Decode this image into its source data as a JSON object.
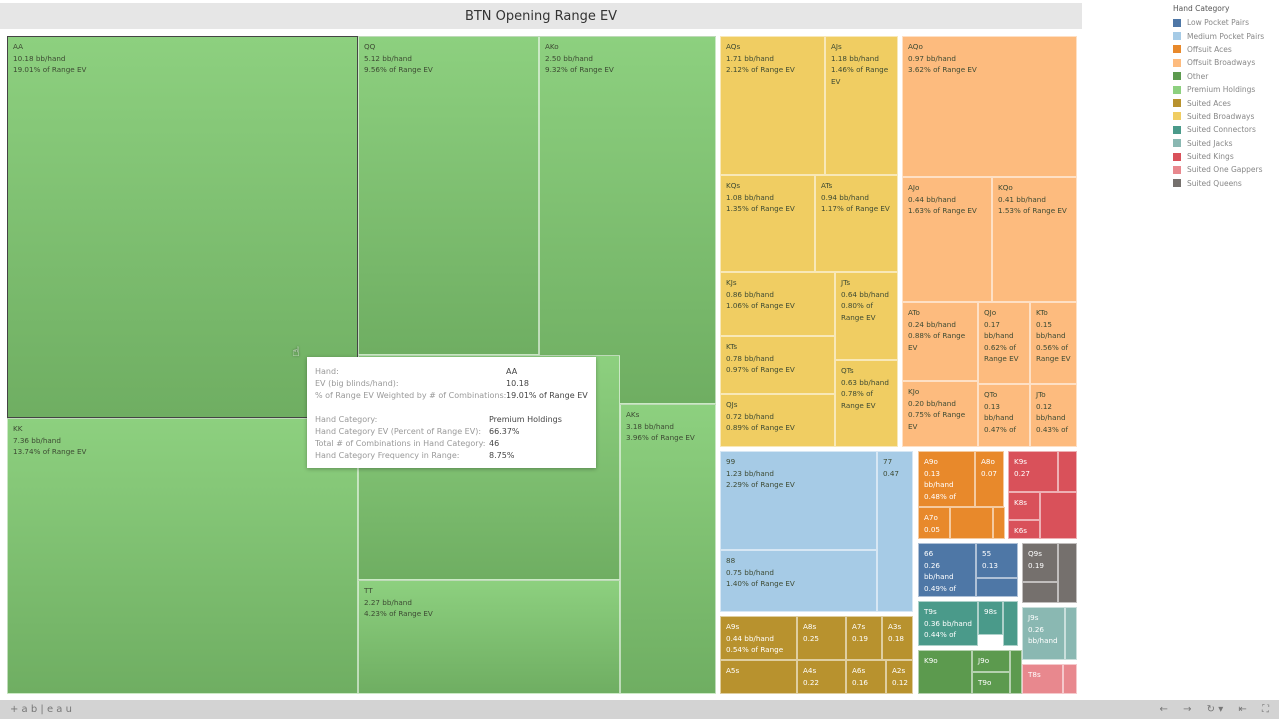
{
  "title": "BTN Opening Range EV",
  "legend": {
    "title": "Hand Category",
    "items": [
      {
        "name": "Low Pocket Pairs",
        "color": "#4e77a6"
      },
      {
        "name": "Medium Pocket Pairs",
        "color": "#a6cbe6"
      },
      {
        "name": "Offsuit Aces",
        "color": "#e8892b"
      },
      {
        "name": "Offsuit Broadways",
        "color": "#fdbb7e"
      },
      {
        "name": "Other",
        "color": "#5c9a4e"
      },
      {
        "name": "Premium Holdings",
        "color": "#8dd07f"
      },
      {
        "name": "Suited Aces",
        "color": "#b8922e"
      },
      {
        "name": "Suited Broadways",
        "color": "#f0cd62"
      },
      {
        "name": "Suited Connectors",
        "color": "#4a9a8a"
      },
      {
        "name": "Suited Jacks",
        "color": "#8ab8b2"
      },
      {
        "name": "Suited Kings",
        "color": "#d9515a"
      },
      {
        "name": "Suited One Gappers",
        "color": "#e8888e"
      },
      {
        "name": "Suited Queens",
        "color": "#75706d"
      }
    ]
  },
  "cells": [
    {
      "cat": 5,
      "hand": "AA",
      "lines": [
        "10.18 bb/hand",
        "19.01% of Range EV"
      ]
    },
    {
      "cat": 5,
      "hand": "QQ",
      "lines": [
        "5.12 bb/hand",
        "9.56% of Range EV"
      ]
    },
    {
      "cat": 5,
      "hand": "AKo",
      "lines": [
        "2.50 bb/hand",
        "9.32% of Range EV"
      ]
    },
    {
      "cat": 5,
      "hand": "",
      "lines": []
    },
    {
      "cat": 5,
      "hand": "AKs",
      "lines": [
        "3.18 bb/hand",
        "3.96% of Range EV"
      ]
    },
    {
      "cat": 5,
      "hand": "KK",
      "lines": [
        "7.36 bb/hand",
        "13.74% of Range EV"
      ]
    },
    {
      "cat": 5,
      "hand": "TT",
      "lines": [
        "2.27 bb/hand",
        "4.23% of Range EV"
      ]
    },
    {
      "cat": 7,
      "hand": "AQs",
      "lines": [
        "1.71 bb/hand",
        "2.12% of Range EV"
      ]
    },
    {
      "cat": 7,
      "hand": "AJs",
      "lines": [
        "1.18 bb/hand",
        "1.46% of Range EV"
      ]
    },
    {
      "cat": 7,
      "hand": "KQs",
      "lines": [
        "1.08 bb/hand",
        "1.35% of Range EV"
      ]
    },
    {
      "cat": 7,
      "hand": "ATs",
      "lines": [
        "0.94 bb/hand",
        "1.17% of Range EV"
      ]
    },
    {
      "cat": 7,
      "hand": "KJs",
      "lines": [
        "0.86 bb/hand",
        "1.06% of Range EV"
      ]
    },
    {
      "cat": 7,
      "hand": "JTs",
      "lines": [
        "0.64 bb/hand",
        "0.80% of Range EV"
      ]
    },
    {
      "cat": 7,
      "hand": "KTs",
      "lines": [
        "0.78 bb/hand",
        "0.97% of Range EV"
      ]
    },
    {
      "cat": 7,
      "hand": "QTs",
      "lines": [
        "0.63 bb/hand",
        "0.78% of Range EV"
      ]
    },
    {
      "cat": 7,
      "hand": "QJs",
      "lines": [
        "0.72 bb/hand",
        "0.89% of Range EV"
      ]
    },
    {
      "cat": 3,
      "hand": "AQo",
      "lines": [
        "0.97 bb/hand",
        "3.62% of Range EV"
      ]
    },
    {
      "cat": 3,
      "hand": "AJo",
      "lines": [
        "0.44 bb/hand",
        "1.63% of Range EV"
      ]
    },
    {
      "cat": 3,
      "hand": "KQo",
      "lines": [
        "0.41 bb/hand",
        "1.53% of Range EV"
      ]
    },
    {
      "cat": 3,
      "hand": "ATo",
      "lines": [
        "0.24 bb/hand",
        "0.88% of Range EV"
      ]
    },
    {
      "cat": 3,
      "hand": "QJo",
      "lines": [
        "0.17",
        "bb/hand",
        "0.62% of",
        "Range EV"
      ]
    },
    {
      "cat": 3,
      "hand": "KTo",
      "lines": [
        "0.15",
        "bb/hand",
        "0.56% of",
        "Range EV"
      ]
    },
    {
      "cat": 3,
      "hand": "KJo",
      "lines": [
        "0.20 bb/hand",
        "0.75% of Range EV"
      ]
    },
    {
      "cat": 3,
      "hand": "QTo",
      "lines": [
        "0.13",
        "bb/hand",
        "0.47% of"
      ]
    },
    {
      "cat": 3,
      "hand": "JTo",
      "lines": [
        "0.12",
        "bb/hand",
        "0.43% of"
      ]
    },
    {
      "cat": 1,
      "hand": "99",
      "lines": [
        "1.23 bb/hand",
        "2.29% of Range EV"
      ]
    },
    {
      "cat": 1,
      "hand": "88",
      "lines": [
        "0.75 bb/hand",
        "1.40% of Range EV"
      ]
    },
    {
      "cat": 1,
      "hand": "77",
      "lines": [
        "0.47"
      ]
    },
    {
      "cat": 6,
      "hand": "A9s",
      "lines": [
        "0.44 bb/hand",
        "0.54% of Range EV"
      ]
    },
    {
      "cat": 6,
      "hand": "A8s",
      "lines": [
        "0.25"
      ]
    },
    {
      "cat": 6,
      "hand": "A7s",
      "lines": [
        "0.19"
      ]
    },
    {
      "cat": 6,
      "hand": "A3s",
      "lines": [
        "0.18"
      ]
    },
    {
      "cat": 6,
      "hand": "A5s",
      "lines": []
    },
    {
      "cat": 6,
      "hand": "A4s",
      "lines": [
        "0.22"
      ]
    },
    {
      "cat": 6,
      "hand": "A6s",
      "lines": [
        "0.16"
      ]
    },
    {
      "cat": 6,
      "hand": "A2s",
      "lines": [
        "0.12"
      ]
    },
    {
      "cat": 2,
      "hand": "A9o",
      "lines": [
        "0.13 bb/hand",
        "0.48% of"
      ]
    },
    {
      "cat": 2,
      "hand": "A8o",
      "lines": [
        "0.07"
      ]
    },
    {
      "cat": 2,
      "hand": "A7o",
      "lines": [
        "0.05"
      ]
    },
    {
      "cat": 2,
      "hand": "",
      "lines": []
    },
    {
      "cat": 2,
      "hand": "",
      "lines": []
    },
    {
      "cat": 10,
      "hand": "K9s",
      "lines": [
        "0.27"
      ]
    },
    {
      "cat": 10,
      "hand": "",
      "lines": []
    },
    {
      "cat": 10,
      "hand": "K8s",
      "lines": []
    },
    {
      "cat": 10,
      "hand": "K6s",
      "lines": []
    },
    {
      "cat": 10,
      "hand": "",
      "lines": []
    },
    {
      "cat": 0,
      "hand": "66",
      "lines": [
        "0.26 bb/hand",
        "0.49% of"
      ]
    },
    {
      "cat": 0,
      "hand": "55",
      "lines": [
        "0.13"
      ]
    },
    {
      "cat": 0,
      "hand": "",
      "lines": []
    },
    {
      "cat": 12,
      "hand": "Q9s",
      "lines": [
        "0.19"
      ]
    },
    {
      "cat": 12,
      "hand": "",
      "lines": []
    },
    {
      "cat": 12,
      "hand": "",
      "lines": []
    },
    {
      "cat": 8,
      "hand": "T9s",
      "lines": [
        "0.36 bb/hand",
        "0.44% of"
      ]
    },
    {
      "cat": 8,
      "hand": "98s",
      "lines": []
    },
    {
      "cat": 8,
      "hand": "",
      "lines": []
    },
    {
      "cat": 9,
      "hand": "J9s",
      "lines": [
        "0.26",
        "bb/hand"
      ]
    },
    {
      "cat": 9,
      "hand": "",
      "lines": []
    },
    {
      "cat": 4,
      "hand": "K9o",
      "lines": []
    },
    {
      "cat": 4,
      "hand": "J9o",
      "lines": []
    },
    {
      "cat": 4,
      "hand": "T9o",
      "lines": []
    },
    {
      "cat": 4,
      "hand": "",
      "lines": []
    },
    {
      "cat": 11,
      "hand": "T8s",
      "lines": []
    },
    {
      "cat": 11,
      "hand": "",
      "lines": []
    }
  ],
  "tooltip": [
    {
      "label": "Hand:",
      "value": "AA"
    },
    {
      "label": "EV (big blinds/hand):",
      "value": "10.18"
    },
    {
      "label": "% of Range EV Weighted by # of Combinations:",
      "value": "19.01% of Range EV"
    },
    {
      "label": "",
      "value": ""
    },
    {
      "label": "Hand Category:",
      "value": "Premium Holdings"
    },
    {
      "label": "Hand Category EV (Percent of Range EV):",
      "value": "66.37%"
    },
    {
      "label": "Total # of Combinations in Hand Category:",
      "value": "46"
    },
    {
      "label": "Hand Category Frequency in Range:",
      "value": "8.75%"
    }
  ],
  "footer": {
    "logo": "+ a b | e a u",
    "nav": [
      "←",
      "→",
      "↻ ▾",
      "⇤",
      "⛶"
    ]
  }
}
